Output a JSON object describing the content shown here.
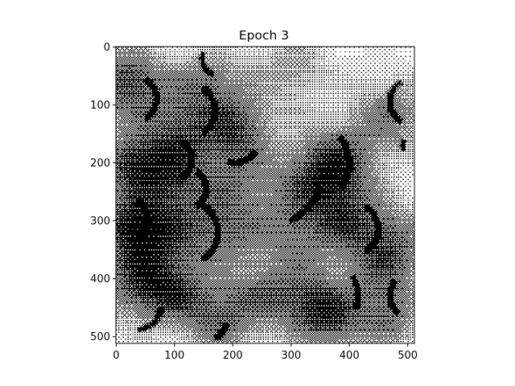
{
  "chart_data": {
    "type": "heatmap",
    "title": "Epoch 3",
    "xlabel": "",
    "ylabel": "",
    "image_extent": [
      -0.5,
      511.5,
      511.5,
      -0.5
    ],
    "xlim": [
      -0.5,
      511.5
    ],
    "ylim": [
      511.5,
      -0.5
    ],
    "y_axis_inverted": true,
    "x_ticks": [
      0,
      100,
      200,
      300,
      400,
      500
    ],
    "x_tick_labels": [
      "0",
      "100",
      "200",
      "300",
      "400",
      "500"
    ],
    "y_ticks": [
      0,
      100,
      200,
      300,
      400,
      500
    ],
    "y_tick_labels": [
      "0",
      "100",
      "200",
      "300",
      "400",
      "500"
    ],
    "colormap": "binary (white to black), dithered pixel pattern",
    "grid": false,
    "colors": {
      "background": "#ffffff",
      "ink": "#000000",
      "frame": "#000000"
    },
    "dark_arcs": [
      {
        "x": 30,
        "y": 90,
        "r": 40,
        "from": 300,
        "to": 60
      },
      {
        "x": 125,
        "y": 110,
        "r": 45,
        "from": 300,
        "to": 60
      },
      {
        "x": 178,
        "y": 20,
        "r": 30,
        "from": 110,
        "to": 200
      },
      {
        "x": 205,
        "y": 160,
        "r": 40,
        "from": 30,
        "to": 110
      },
      {
        "x": 15,
        "y": 195,
        "r": 30,
        "from": 135,
        "to": 225
      },
      {
        "x": 95,
        "y": 195,
        "r": 35,
        "from": 300,
        "to": 60
      },
      {
        "x": 120,
        "y": 245,
        "r": 35,
        "from": 300,
        "to": 60
      },
      {
        "x": 270,
        "y": 225,
        "r": 80,
        "from": 10,
        "to": 70
      },
      {
        "x": 330,
        "y": 200,
        "r": 70,
        "from": 320,
        "to": 40
      },
      {
        "x": 510,
        "y": 95,
        "r": 40,
        "from": 120,
        "to": 240
      },
      {
        "x": 512,
        "y": 170,
        "r": 20,
        "from": 150,
        "to": 210
      },
      {
        "x": 15,
        "y": 300,
        "r": 40,
        "from": 300,
        "to": 60
      },
      {
        "x": 120,
        "y": 320,
        "r": 55,
        "from": 300,
        "to": 60
      },
      {
        "x": 405,
        "y": 315,
        "r": 45,
        "from": 300,
        "to": 60
      },
      {
        "x": 30,
        "y": 440,
        "r": 50,
        "from": 10,
        "to": 80
      },
      {
        "x": 345,
        "y": 430,
        "r": 70,
        "from": 330,
        "to": 20
      },
      {
        "x": 510,
        "y": 430,
        "r": 40,
        "from": 130,
        "to": 220
      },
      {
        "x": 420,
        "y": 490,
        "r": 40,
        "from": 40,
        "to": 90
      },
      {
        "x": 150,
        "y": 470,
        "r": 40,
        "from": 10,
        "to": 60
      }
    ],
    "shaded_regions": [
      {
        "x": 20,
        "y": 60,
        "r": 45,
        "level": 0.65
      },
      {
        "x": 110,
        "y": 140,
        "r": 50,
        "level": 0.5
      },
      {
        "x": 160,
        "y": 60,
        "r": 40,
        "level": 0.4
      },
      {
        "x": 210,
        "y": 140,
        "r": 40,
        "level": 0.55
      },
      {
        "x": 20,
        "y": 200,
        "r": 35,
        "level": 0.55
      },
      {
        "x": 90,
        "y": 220,
        "r": 45,
        "level": 0.5
      },
      {
        "x": 200,
        "y": 230,
        "r": 45,
        "level": 0.35
      },
      {
        "x": 320,
        "y": 240,
        "r": 50,
        "level": 0.4
      },
      {
        "x": 380,
        "y": 200,
        "r": 45,
        "level": 0.6
      },
      {
        "x": 470,
        "y": 120,
        "r": 45,
        "level": 0.45
      },
      {
        "x": 300,
        "y": 40,
        "r": 50,
        "level": 0.3
      },
      {
        "x": 20,
        "y": 310,
        "r": 40,
        "level": 0.6
      },
      {
        "x": 90,
        "y": 320,
        "r": 50,
        "level": 0.5
      },
      {
        "x": 190,
        "y": 320,
        "r": 45,
        "level": 0.45
      },
      {
        "x": 300,
        "y": 330,
        "r": 45,
        "level": 0.35
      },
      {
        "x": 400,
        "y": 300,
        "r": 45,
        "level": 0.55
      },
      {
        "x": 480,
        "y": 330,
        "r": 40,
        "level": 0.35
      },
      {
        "x": 40,
        "y": 410,
        "r": 45,
        "level": 0.6
      },
      {
        "x": 110,
        "y": 430,
        "r": 40,
        "level": 0.45
      },
      {
        "x": 180,
        "y": 470,
        "r": 40,
        "level": 0.5
      },
      {
        "x": 240,
        "y": 430,
        "r": 35,
        "level": 0.35
      },
      {
        "x": 320,
        "y": 440,
        "r": 45,
        "level": 0.55
      },
      {
        "x": 380,
        "y": 470,
        "r": 40,
        "level": 0.5
      },
      {
        "x": 460,
        "y": 390,
        "r": 45,
        "level": 0.45
      },
      {
        "x": 470,
        "y": 470,
        "r": 35,
        "level": 0.4
      }
    ]
  }
}
